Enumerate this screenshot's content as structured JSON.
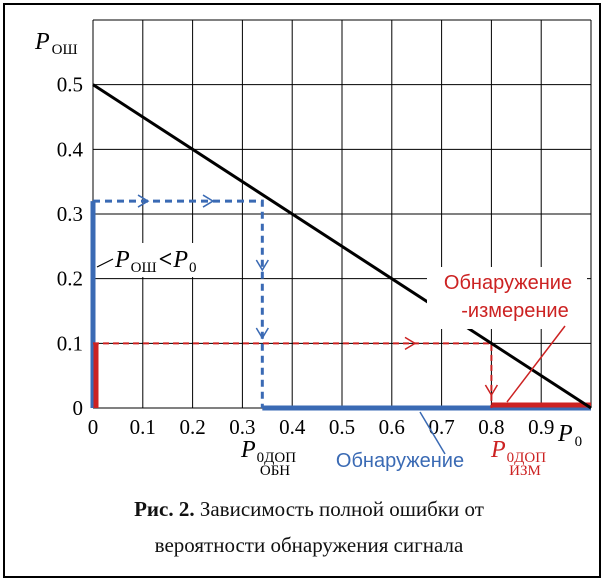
{
  "chart_data": {
    "type": "line",
    "x_ticks": [
      "0",
      "0.1",
      "0.2",
      "0.3",
      "0.4",
      "0.5",
      "0.6",
      "0.7",
      "0.8",
      "0.9"
    ],
    "y_ticks": [
      "0",
      "0.1",
      "0.2",
      "0.3",
      "0.4",
      "0.5"
    ],
    "xlim": [
      0,
      1
    ],
    "ylim": [
      0,
      0.6
    ],
    "grid": true,
    "ylabel_main": "P",
    "ylabel_sub": "ОШ",
    "xlabel_main": "P",
    "xlabel_sub": "0",
    "series": [
      {
        "x": [
          0,
          1
        ],
        "y": [
          0.5,
          0
        ]
      }
    ],
    "annotations": {
      "ineq_p": "P",
      "ineq_sub": "ОШ",
      "ineq_op": "<",
      "ineq_p0": "P",
      "ineq_p0_sub": "0",
      "detect_label": "Обнаружение",
      "detect_measure_line1": "Обнаружение",
      "detect_measure_line2": "-измерение",
      "p_obn_main": "P",
      "p_obn_sub1": "0ДОП",
      "p_obn_sub2": "ОБН",
      "p_izm_main": "P",
      "p_izm_sub1": "0ДОП",
      "p_izm_sub2": "ИЗМ"
    },
    "levels": {
      "blue_dashed_y": 0.32,
      "blue_dashed_x": 0.34,
      "red_dashed_y": 0.1,
      "red_dashed_x": 0.8
    },
    "colors": {
      "line": "#000000",
      "blue": "#3a6ab4",
      "red": "#cc2222",
      "grid": "#000000"
    }
  },
  "caption": {
    "bold": "Рис. 2.",
    "line1": " Зависимость полной ошибки от",
    "line2": "вероятности обнаружения сигнала"
  }
}
